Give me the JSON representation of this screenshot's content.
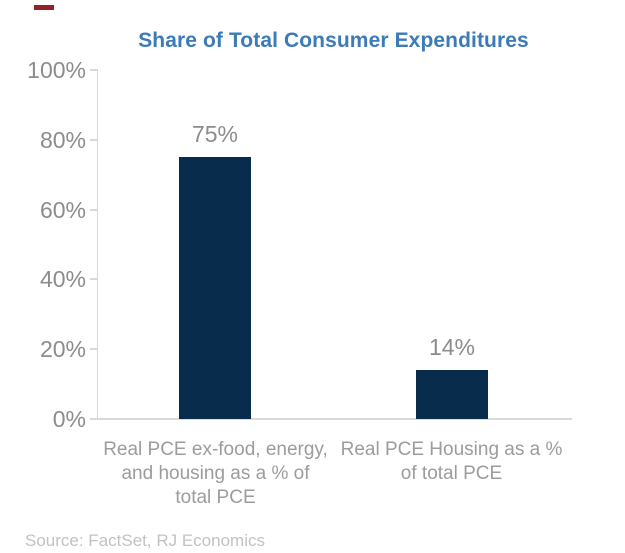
{
  "title": "Share of Total Consumer Expenditures",
  "source_note": "Source: FactSet, RJ Economics",
  "colors": {
    "brand_dash": "#942127",
    "title_text": "#3c7ab8",
    "bar_fill": "#072c4c",
    "axis_label_text": "#8c8c8c",
    "value_label_text": "#8c8c8c",
    "category_text": "#9c9c9c",
    "source_text": "#c2c2c2",
    "axis_line": "#d9d9d9"
  },
  "chart_data": {
    "type": "bar",
    "title": "Share of Total Consumer Expenditures",
    "categories": [
      "Real PCE ex-food, energy, and housing as a % of total PCE",
      "Real PCE Housing as a % of total PCE"
    ],
    "category_label_lines": [
      [
        "Real PCE ex-food, energy,",
        "and housing as a % of",
        "total PCE"
      ],
      [
        "Real PCE Housing as a %",
        "of total PCE"
      ]
    ],
    "values": [
      75,
      14
    ],
    "value_labels": [
      "75%",
      "14%"
    ],
    "xlabel": "",
    "ylabel": "",
    "ylim": [
      0,
      100
    ],
    "ytick_labels": [
      "0%",
      "20%",
      "40%",
      "60%",
      "80%",
      "100%"
    ],
    "grid": false,
    "legend": false,
    "source": "Source: FactSet, RJ Economics"
  }
}
